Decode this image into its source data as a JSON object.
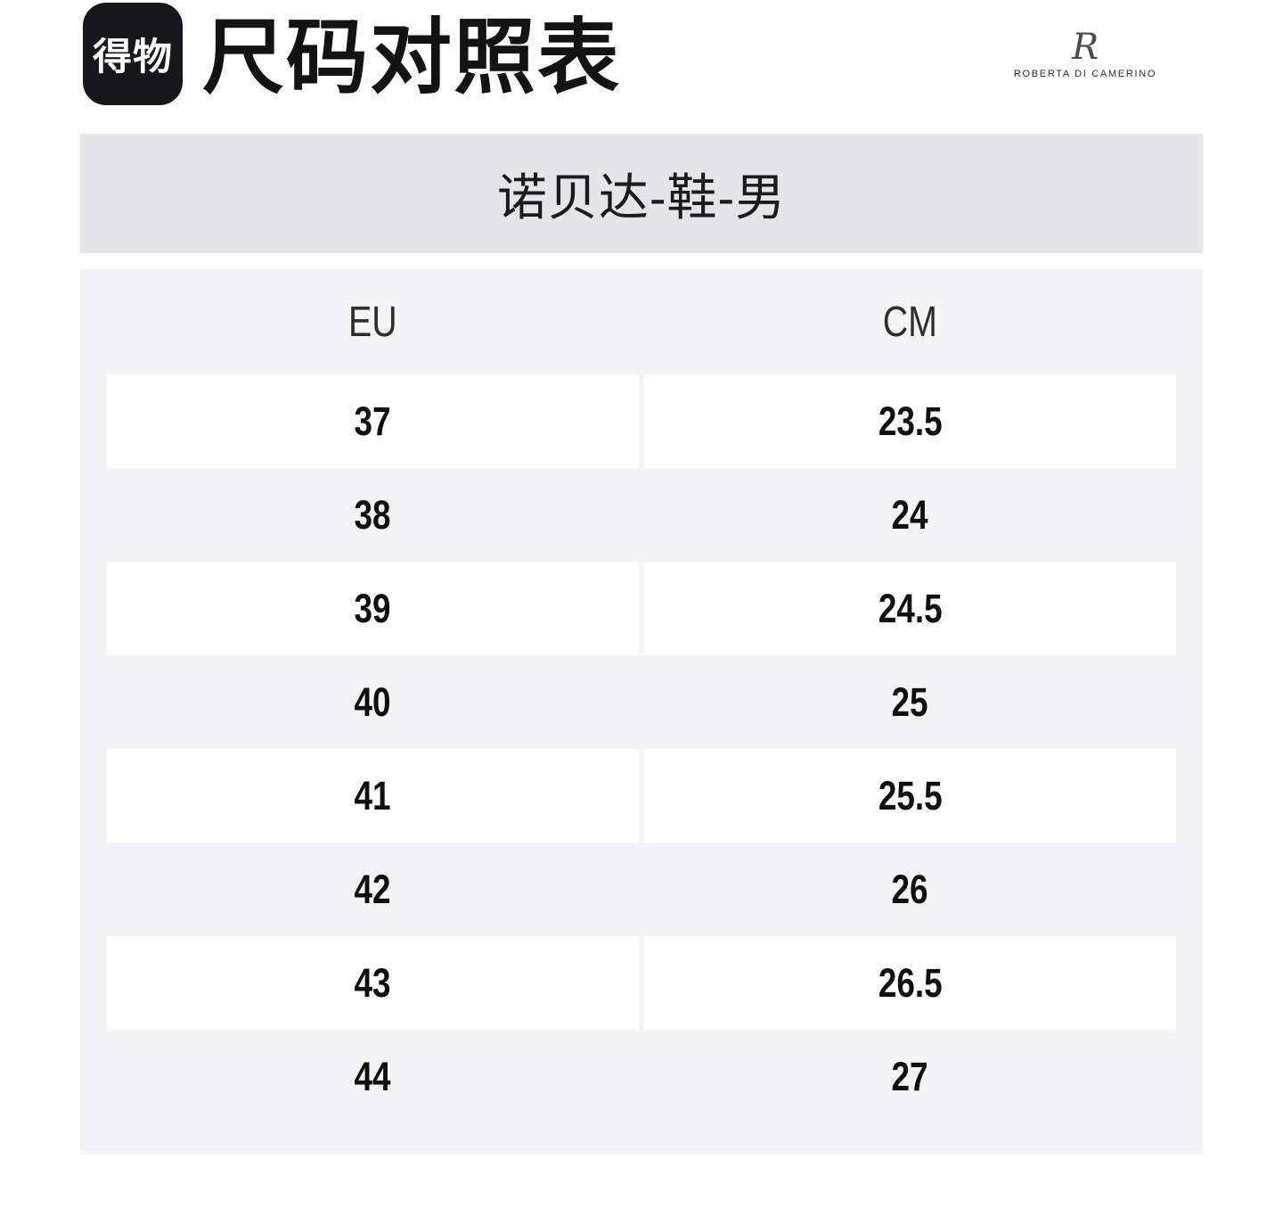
{
  "header": {
    "logo_text": "得物",
    "title": "尺码对照表"
  },
  "brand": {
    "monogram": "R",
    "name": "ROBERTA DI CAMERINO"
  },
  "banner": {
    "product_name": "诺贝达-鞋-男"
  },
  "table": {
    "columns": [
      {
        "key": "eu",
        "label": "EU"
      },
      {
        "key": "cm",
        "label": "CM"
      }
    ],
    "rows": [
      {
        "eu": "37",
        "cm": "23.5"
      },
      {
        "eu": "38",
        "cm": "24"
      },
      {
        "eu": "39",
        "cm": "24.5"
      },
      {
        "eu": "40",
        "cm": "25"
      },
      {
        "eu": "41",
        "cm": "25.5"
      },
      {
        "eu": "42",
        "cm": "26"
      },
      {
        "eu": "43",
        "cm": "26.5"
      },
      {
        "eu": "44",
        "cm": "27"
      }
    ]
  },
  "colors": {
    "logo_bg": "#17171b",
    "banner_bg": "#e5e4e9",
    "table_bg": "#f4f4f7",
    "row_card_bg": "#ffffff",
    "text": "#111111"
  }
}
